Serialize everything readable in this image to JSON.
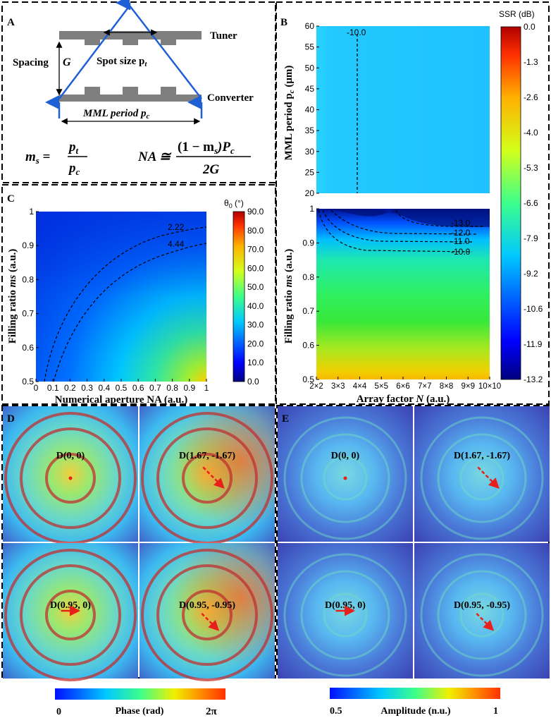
{
  "panels": {
    "A": {
      "label": "A",
      "tuner": "Tuner",
      "converter": "Converter",
      "spacing": "Spacing",
      "g_symbol": "G",
      "spot_size": "Spot size p",
      "spot_sub": "t",
      "mml_period": "MML period p",
      "mml_sub": "c",
      "eq_ms_lhs": "m",
      "eq_ms_lhs_sub": "s",
      "eq_ms_num": "p",
      "eq_ms_num_sub": "t",
      "eq_ms_den": "p",
      "eq_ms_den_sub": "c",
      "eq_na_lhs": "NA ≅",
      "eq_na_num_a": "(1 − m",
      "eq_na_num_sub": "s",
      "eq_na_num_b": ")P",
      "eq_na_num_sub2": "c",
      "eq_na_den": "2G"
    },
    "B": {
      "label": "B"
    },
    "C": {
      "label": "C"
    },
    "D": {
      "label": "D"
    },
    "E": {
      "label": "E"
    }
  },
  "chart_data": [
    {
      "id": "B-top",
      "type": "heatmap",
      "ylabel": "MML period  p_c (μm)",
      "ylabel_main": "MML period  p",
      "ylabel_sub": "c",
      "ylabel_unit": " (μm)",
      "y_ticks": [
        "20",
        "25",
        "30",
        "35",
        "40",
        "45",
        "50",
        "55",
        "60"
      ],
      "ylim": [
        20,
        60
      ],
      "contour_label": "-10.0"
    },
    {
      "id": "B-bottom",
      "type": "heatmap",
      "ylabel": "Filling ratio  ms (a.u.)",
      "ylabel_main": "Filling ratio  ",
      "ylabel_italic": "ms",
      "ylabel_unit": " (a.u.)",
      "xlabel_main": "Array factor ",
      "xlabel_italic": "N",
      "xlabel_unit": " (a.u.)",
      "x_ticks": [
        "2×2",
        "3×3",
        "4×4",
        "5×5",
        "6×6",
        "7×7",
        "8×8",
        "9×9",
        "10×10"
      ],
      "y_ticks": [
        "0.5",
        "0.6",
        "0.7",
        "0.8",
        "0.9",
        "1"
      ],
      "ylim": [
        0.5,
        1.0
      ],
      "contour_labels": [
        "-13.0",
        "-12.0",
        "-11.0",
        "-10.0"
      ],
      "colorbar_title": "SSR (dB)",
      "colorbar_ticks": [
        "0.0",
        "-1.3",
        "-2.6",
        "-4.0",
        "-5.3",
        "-6.6",
        "-7.9",
        "-9.2",
        "-10.6",
        "-11.9",
        "-13.2"
      ]
    },
    {
      "id": "C",
      "type": "heatmap",
      "xlabel": "Numerical aperture NA (a.u.)",
      "ylabel_main": "Filling ratio  ",
      "ylabel_italic": "ms",
      "ylabel_unit": " (a.u.)",
      "x_ticks": [
        "0",
        "0.1",
        "0.2",
        "0.3",
        "0.4",
        "0.5",
        "0.6",
        "0.7",
        "0.8",
        "0.9",
        "1"
      ],
      "y_ticks": [
        "0.5",
        "0.6",
        "0.7",
        "0.8",
        "0.9",
        "1"
      ],
      "xlim": [
        0,
        1
      ],
      "ylim": [
        0.5,
        1.0
      ],
      "contour_labels": [
        "2.22",
        "4.44"
      ],
      "colorbar_title": "θ",
      "colorbar_title_sub": "0",
      "colorbar_title_unit": " (°)",
      "colorbar_ticks": [
        "90.0",
        "80.0",
        "70.0",
        "60.0",
        "50.0",
        "40.0",
        "30.0",
        "20.0",
        "10.0",
        "0.0"
      ]
    }
  ],
  "maps": {
    "D": [
      "D(0, 0)",
      "D(1.67, -1.67)",
      "D(0.95, 0)",
      "D(0.95, -0.95)"
    ],
    "E": [
      "D(0, 0)",
      "D(1.67, -1.67)",
      "D(0.95, 0)",
      "D(0.95, -0.95)"
    ]
  },
  "colorbars": {
    "phase": {
      "min": "0",
      "title": "Phase (rad)",
      "max": "2π"
    },
    "amplitude": {
      "min": "0.5",
      "title": "Amplitude (n.u.)",
      "max": "1"
    }
  },
  "colors": {
    "blue_line": "#1f5fd6",
    "gray_block": "#7f7f7f",
    "arrow_red": "#e8201a"
  }
}
